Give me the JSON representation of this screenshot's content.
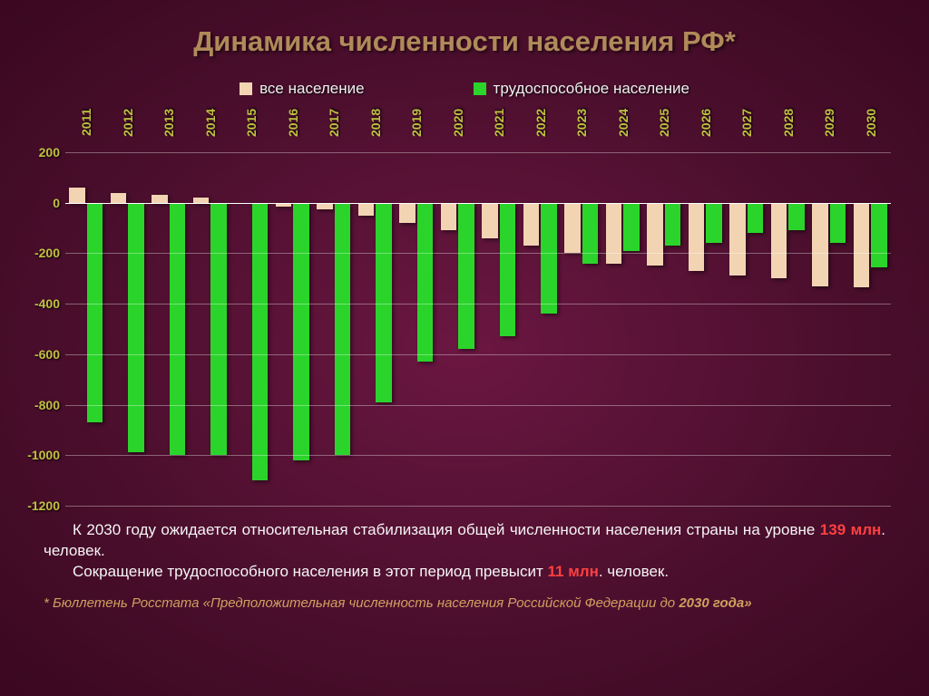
{
  "title": "Динамика численности населения РФ*",
  "legend": {
    "series1": {
      "label": "все население",
      "color": "#f2d4b3"
    },
    "series2": {
      "label": "трудоспособное население",
      "color": "#2bd42b"
    }
  },
  "chart": {
    "type": "bar",
    "ylim": [
      -1200,
      200
    ],
    "ytick_step": 200,
    "yticks": [
      200,
      0,
      -200,
      -400,
      -600,
      -800,
      -1000,
      -1200
    ],
    "grid_color": "rgba(255,255,255,0.35)",
    "zero_color": "#ffffff",
    "year_label_color": "#c0c040",
    "ylabel_color": "#c0c040",
    "bar_group_gap_pct": 18,
    "bar_inner_gap_pct": 4,
    "years": [
      "2011",
      "2012",
      "2013",
      "2014",
      "2015",
      "2016",
      "2017",
      "2018",
      "2019",
      "2020",
      "2021",
      "2022",
      "2023",
      "2024",
      "2025",
      "2026",
      "2027",
      "2028",
      "2029",
      "2030"
    ],
    "series1_values": [
      60,
      40,
      30,
      20,
      0,
      -15,
      -25,
      -50,
      -80,
      -110,
      -140,
      -170,
      -200,
      -240,
      -250,
      -270,
      -290,
      -300,
      -330,
      -335
    ],
    "series2_values": [
      -870,
      -990,
      -1000,
      -1000,
      -1100,
      -1020,
      -1000,
      -790,
      -630,
      -580,
      -530,
      -440,
      -240,
      -190,
      -170,
      -160,
      -120,
      -110,
      -160,
      -255
    ]
  },
  "notes": {
    "line1_a": "К 2030 году ожидается относительная стабилизация общей численности населения страны на уровне ",
    "line1_hl": "139 млн",
    "line1_b": ". человек.",
    "line2_a": "Сокращение трудоспособного населения в этот период превысит ",
    "line2_hl": "11 млн",
    "line2_b": ". человек."
  },
  "footnote": {
    "a": "* Бюллетень Росстата «Предположительная численность населения Российской Федерации до ",
    "b": "2030 года»"
  }
}
